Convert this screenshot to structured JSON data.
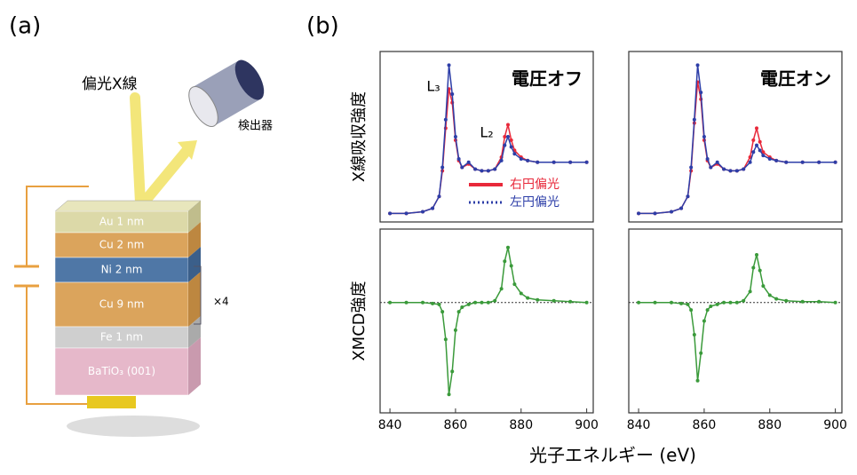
{
  "figure_labels": [
    "(a)",
    "(b)"
  ],
  "diagram": {
    "beam_label": "偏光X線",
    "detector_label": "検出器",
    "layers": [
      "Au 1 nm",
      "Cu 2 nm",
      "Ni 2 nm",
      "Cu 9 nm",
      "Fe 1 nm",
      "BaTiO₃ (001)"
    ],
    "repeat_label": "×4"
  },
  "x_axis_label": "光子エネルギー (eV)",
  "chart_data": [
    {
      "type": "line",
      "title": "電圧オフ",
      "ylabel": "X線吸収強度",
      "annotations": [
        "L₃",
        "L₂"
      ],
      "legend": true,
      "x": [
        840,
        845,
        850,
        853,
        855,
        856,
        857,
        858,
        859,
        860,
        861,
        862,
        864,
        866,
        868,
        870,
        872,
        874,
        875,
        876,
        877,
        878,
        880,
        882,
        885,
        890,
        895,
        900
      ],
      "xlim": [
        837,
        902
      ],
      "ylim": [
        0,
        1
      ],
      "series": [
        {
          "name": "右円偏光",
          "color": "#e8283a",
          "values": [
            0.05,
            0.05,
            0.06,
            0.08,
            0.15,
            0.3,
            0.55,
            0.78,
            0.7,
            0.48,
            0.36,
            0.32,
            0.34,
            0.31,
            0.3,
            0.3,
            0.31,
            0.38,
            0.5,
            0.57,
            0.48,
            0.42,
            0.38,
            0.36,
            0.35,
            0.35,
            0.35,
            0.35
          ]
        },
        {
          "name": "左円偏光",
          "color": "#2d3ea8",
          "values": [
            0.05,
            0.05,
            0.06,
            0.08,
            0.15,
            0.32,
            0.6,
            0.92,
            0.75,
            0.5,
            0.37,
            0.32,
            0.35,
            0.31,
            0.3,
            0.3,
            0.31,
            0.36,
            0.45,
            0.5,
            0.44,
            0.4,
            0.37,
            0.36,
            0.35,
            0.35,
            0.35,
            0.35
          ]
        }
      ]
    },
    {
      "type": "line",
      "title": "電圧オン",
      "x": [
        840,
        845,
        850,
        853,
        855,
        856,
        857,
        858,
        859,
        860,
        861,
        862,
        864,
        866,
        868,
        870,
        872,
        874,
        875,
        876,
        877,
        878,
        880,
        882,
        885,
        890,
        895,
        900
      ],
      "xlim": [
        837,
        902
      ],
      "ylim": [
        0,
        1
      ],
      "series": [
        {
          "color": "#e8283a",
          "values": [
            0.05,
            0.05,
            0.06,
            0.08,
            0.15,
            0.3,
            0.58,
            0.82,
            0.72,
            0.48,
            0.36,
            0.32,
            0.34,
            0.31,
            0.3,
            0.3,
            0.31,
            0.38,
            0.48,
            0.55,
            0.47,
            0.41,
            0.38,
            0.36,
            0.35,
            0.35,
            0.35,
            0.35
          ]
        },
        {
          "color": "#2d3ea8",
          "values": [
            0.05,
            0.05,
            0.06,
            0.08,
            0.15,
            0.32,
            0.6,
            0.92,
            0.76,
            0.5,
            0.37,
            0.32,
            0.35,
            0.31,
            0.3,
            0.3,
            0.31,
            0.35,
            0.41,
            0.45,
            0.42,
            0.39,
            0.37,
            0.36,
            0.35,
            0.35,
            0.35,
            0.35
          ]
        }
      ]
    },
    {
      "type": "line",
      "ylabel": "XMCD強度",
      "hline": 0,
      "x": [
        840,
        845,
        850,
        853,
        855,
        856,
        857,
        858,
        859,
        860,
        861,
        862,
        864,
        866,
        868,
        870,
        872,
        874,
        875,
        876,
        877,
        878,
        880,
        882,
        885,
        890,
        895,
        900
      ],
      "xlim": [
        837,
        902
      ],
      "ylim": [
        -1.2,
        0.8
      ],
      "xticks": [
        840,
        860,
        880,
        900
      ],
      "series": [
        {
          "color": "#3a9a3a",
          "values": [
            0,
            0,
            0,
            -0.01,
            -0.02,
            -0.1,
            -0.4,
            -1.0,
            -0.75,
            -0.3,
            -0.1,
            -0.05,
            -0.02,
            0,
            0,
            0,
            0.02,
            0.15,
            0.45,
            0.6,
            0.4,
            0.2,
            0.1,
            0.05,
            0.03,
            0.02,
            0.01,
            0
          ]
        }
      ]
    },
    {
      "type": "line",
      "hline": 0,
      "x": [
        840,
        845,
        850,
        853,
        855,
        856,
        857,
        858,
        859,
        860,
        861,
        862,
        864,
        866,
        868,
        870,
        872,
        874,
        875,
        876,
        877,
        878,
        880,
        882,
        885,
        890,
        895,
        900
      ],
      "xlim": [
        837,
        902
      ],
      "ylim": [
        -1.2,
        0.8
      ],
      "xticks": [
        840,
        860,
        880,
        900
      ],
      "series": [
        {
          "color": "#3a9a3a",
          "values": [
            0,
            0,
            0,
            -0.01,
            -0.02,
            -0.08,
            -0.35,
            -0.85,
            -0.55,
            -0.2,
            -0.08,
            -0.04,
            -0.02,
            0,
            0,
            0,
            0.02,
            0.12,
            0.38,
            0.52,
            0.35,
            0.18,
            0.08,
            0.04,
            0.02,
            0.01,
            0.01,
            0
          ]
        }
      ]
    }
  ]
}
